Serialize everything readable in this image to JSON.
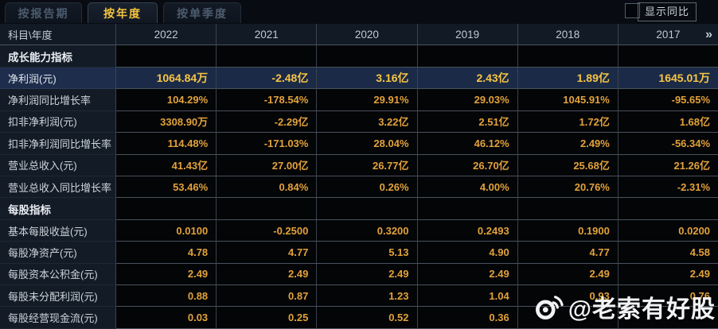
{
  "tabs": [
    {
      "label": "按报告期",
      "active": false
    },
    {
      "label": "按年度",
      "active": true
    },
    {
      "label": "按单季度",
      "active": false
    }
  ],
  "controls": {
    "show_yoy_label": "显示同比",
    "checkbox_checked": false
  },
  "table": {
    "corner_label": "科目\\年度",
    "years": [
      "2022",
      "2021",
      "2020",
      "2019",
      "2018",
      "2017"
    ],
    "more_label": "»",
    "rows": [
      {
        "type": "section",
        "label": "成长能力指标",
        "values": [
          "",
          "",
          "",
          "",
          "",
          ""
        ]
      },
      {
        "type": "data",
        "label": "净利润(元)",
        "highlight": true,
        "values": [
          "1064.84万",
          "-2.48亿",
          "3.16亿",
          "2.43亿",
          "1.89亿",
          "1645.01万"
        ]
      },
      {
        "type": "data",
        "label": "净利润同比增长率",
        "values": [
          "104.29%",
          "-178.54%",
          "29.91%",
          "29.03%",
          "1045.91%",
          "-95.65%"
        ]
      },
      {
        "type": "data",
        "label": "扣非净利润(元)",
        "values": [
          "3308.90万",
          "-2.29亿",
          "3.22亿",
          "2.51亿",
          "1.72亿",
          "1.68亿"
        ]
      },
      {
        "type": "data",
        "label": "扣非净利润同比增长率",
        "values": [
          "114.48%",
          "-171.03%",
          "28.04%",
          "46.12%",
          "2.49%",
          "-56.34%"
        ]
      },
      {
        "type": "data",
        "label": "营业总收入(元)",
        "values": [
          "41.43亿",
          "27.00亿",
          "26.77亿",
          "26.70亿",
          "25.68亿",
          "21.26亿"
        ]
      },
      {
        "type": "data",
        "label": "营业总收入同比增长率",
        "values": [
          "53.46%",
          "0.84%",
          "0.26%",
          "4.00%",
          "20.76%",
          "-2.31%"
        ]
      },
      {
        "type": "section",
        "label": "每股指标",
        "values": [
          "",
          "",
          "",
          "",
          "",
          ""
        ]
      },
      {
        "type": "data",
        "label": "基本每股收益(元)",
        "values": [
          "0.0100",
          "-0.2500",
          "0.3200",
          "0.2493",
          "0.1900",
          "0.0200"
        ]
      },
      {
        "type": "data",
        "label": "每股净资产(元)",
        "values": [
          "4.78",
          "4.77",
          "5.13",
          "4.90",
          "4.77",
          "4.58"
        ]
      },
      {
        "type": "data",
        "label": "每股资本公积金(元)",
        "values": [
          "2.49",
          "2.49",
          "2.49",
          "2.49",
          "2.49",
          "2.49"
        ]
      },
      {
        "type": "data",
        "label": "每股未分配利润(元)",
        "values": [
          "0.88",
          "0.87",
          "1.23",
          "1.04",
          "0.93",
          "0.76"
        ]
      },
      {
        "type": "data",
        "label": "每股经营现金流(元)",
        "values": [
          "0.03",
          "0.25",
          "0.52",
          "0.36",
          "",
          ""
        ]
      }
    ]
  },
  "watermark": {
    "icon": "weibo-icon",
    "text": "@老索有好股"
  },
  "colors": {
    "value_gold": "#e2a23b",
    "highlight_gold": "#f7c544",
    "highlight_row_bg": "#1b2a47",
    "label_column_bg": "#131b26",
    "cell_bg": "#040507",
    "grid_line": "#4a525c",
    "active_tab_text": "#f3c23e"
  }
}
